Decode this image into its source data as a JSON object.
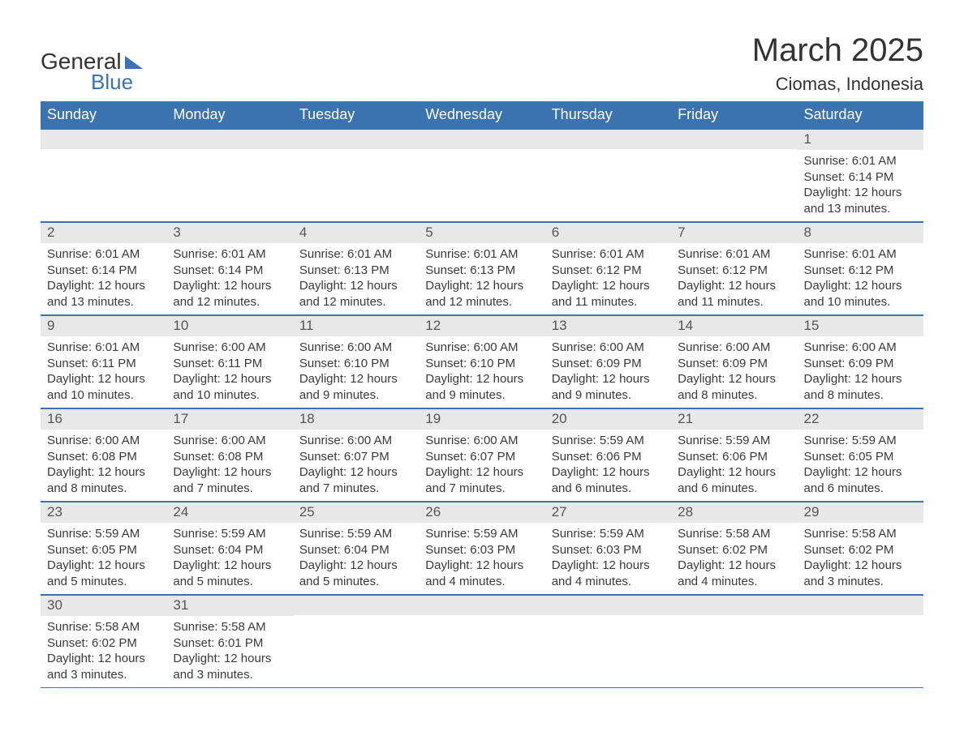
{
  "logo": {
    "text1": "General",
    "text2": "Blue"
  },
  "title": "March 2025",
  "location": "Ciomas, Indonesia",
  "colors": {
    "header_bg": "#3b72b0",
    "header_text": "#ffffff",
    "daynum_bg": "#e8e8e8",
    "daynum_text": "#555555",
    "body_text": "#3a3a3a",
    "border": "#3b72b0",
    "page_bg": "#ffffff"
  },
  "weekdays": [
    "Sunday",
    "Monday",
    "Tuesday",
    "Wednesday",
    "Thursday",
    "Friday",
    "Saturday"
  ],
  "weeks": [
    [
      {
        "day": "",
        "sunrise": "",
        "sunset": "",
        "daylight1": "",
        "daylight2": ""
      },
      {
        "day": "",
        "sunrise": "",
        "sunset": "",
        "daylight1": "",
        "daylight2": ""
      },
      {
        "day": "",
        "sunrise": "",
        "sunset": "",
        "daylight1": "",
        "daylight2": ""
      },
      {
        "day": "",
        "sunrise": "",
        "sunset": "",
        "daylight1": "",
        "daylight2": ""
      },
      {
        "day": "",
        "sunrise": "",
        "sunset": "",
        "daylight1": "",
        "daylight2": ""
      },
      {
        "day": "",
        "sunrise": "",
        "sunset": "",
        "daylight1": "",
        "daylight2": ""
      },
      {
        "day": "1",
        "sunrise": "Sunrise: 6:01 AM",
        "sunset": "Sunset: 6:14 PM",
        "daylight1": "Daylight: 12 hours",
        "daylight2": "and 13 minutes."
      }
    ],
    [
      {
        "day": "2",
        "sunrise": "Sunrise: 6:01 AM",
        "sunset": "Sunset: 6:14 PM",
        "daylight1": "Daylight: 12 hours",
        "daylight2": "and 13 minutes."
      },
      {
        "day": "3",
        "sunrise": "Sunrise: 6:01 AM",
        "sunset": "Sunset: 6:14 PM",
        "daylight1": "Daylight: 12 hours",
        "daylight2": "and 12 minutes."
      },
      {
        "day": "4",
        "sunrise": "Sunrise: 6:01 AM",
        "sunset": "Sunset: 6:13 PM",
        "daylight1": "Daylight: 12 hours",
        "daylight2": "and 12 minutes."
      },
      {
        "day": "5",
        "sunrise": "Sunrise: 6:01 AM",
        "sunset": "Sunset: 6:13 PM",
        "daylight1": "Daylight: 12 hours",
        "daylight2": "and 12 minutes."
      },
      {
        "day": "6",
        "sunrise": "Sunrise: 6:01 AM",
        "sunset": "Sunset: 6:12 PM",
        "daylight1": "Daylight: 12 hours",
        "daylight2": "and 11 minutes."
      },
      {
        "day": "7",
        "sunrise": "Sunrise: 6:01 AM",
        "sunset": "Sunset: 6:12 PM",
        "daylight1": "Daylight: 12 hours",
        "daylight2": "and 11 minutes."
      },
      {
        "day": "8",
        "sunrise": "Sunrise: 6:01 AM",
        "sunset": "Sunset: 6:12 PM",
        "daylight1": "Daylight: 12 hours",
        "daylight2": "and 10 minutes."
      }
    ],
    [
      {
        "day": "9",
        "sunrise": "Sunrise: 6:01 AM",
        "sunset": "Sunset: 6:11 PM",
        "daylight1": "Daylight: 12 hours",
        "daylight2": "and 10 minutes."
      },
      {
        "day": "10",
        "sunrise": "Sunrise: 6:00 AM",
        "sunset": "Sunset: 6:11 PM",
        "daylight1": "Daylight: 12 hours",
        "daylight2": "and 10 minutes."
      },
      {
        "day": "11",
        "sunrise": "Sunrise: 6:00 AM",
        "sunset": "Sunset: 6:10 PM",
        "daylight1": "Daylight: 12 hours",
        "daylight2": "and 9 minutes."
      },
      {
        "day": "12",
        "sunrise": "Sunrise: 6:00 AM",
        "sunset": "Sunset: 6:10 PM",
        "daylight1": "Daylight: 12 hours",
        "daylight2": "and 9 minutes."
      },
      {
        "day": "13",
        "sunrise": "Sunrise: 6:00 AM",
        "sunset": "Sunset: 6:09 PM",
        "daylight1": "Daylight: 12 hours",
        "daylight2": "and 9 minutes."
      },
      {
        "day": "14",
        "sunrise": "Sunrise: 6:00 AM",
        "sunset": "Sunset: 6:09 PM",
        "daylight1": "Daylight: 12 hours",
        "daylight2": "and 8 minutes."
      },
      {
        "day": "15",
        "sunrise": "Sunrise: 6:00 AM",
        "sunset": "Sunset: 6:09 PM",
        "daylight1": "Daylight: 12 hours",
        "daylight2": "and 8 minutes."
      }
    ],
    [
      {
        "day": "16",
        "sunrise": "Sunrise: 6:00 AM",
        "sunset": "Sunset: 6:08 PM",
        "daylight1": "Daylight: 12 hours",
        "daylight2": "and 8 minutes."
      },
      {
        "day": "17",
        "sunrise": "Sunrise: 6:00 AM",
        "sunset": "Sunset: 6:08 PM",
        "daylight1": "Daylight: 12 hours",
        "daylight2": "and 7 minutes."
      },
      {
        "day": "18",
        "sunrise": "Sunrise: 6:00 AM",
        "sunset": "Sunset: 6:07 PM",
        "daylight1": "Daylight: 12 hours",
        "daylight2": "and 7 minutes."
      },
      {
        "day": "19",
        "sunrise": "Sunrise: 6:00 AM",
        "sunset": "Sunset: 6:07 PM",
        "daylight1": "Daylight: 12 hours",
        "daylight2": "and 7 minutes."
      },
      {
        "day": "20",
        "sunrise": "Sunrise: 5:59 AM",
        "sunset": "Sunset: 6:06 PM",
        "daylight1": "Daylight: 12 hours",
        "daylight2": "and 6 minutes."
      },
      {
        "day": "21",
        "sunrise": "Sunrise: 5:59 AM",
        "sunset": "Sunset: 6:06 PM",
        "daylight1": "Daylight: 12 hours",
        "daylight2": "and 6 minutes."
      },
      {
        "day": "22",
        "sunrise": "Sunrise: 5:59 AM",
        "sunset": "Sunset: 6:05 PM",
        "daylight1": "Daylight: 12 hours",
        "daylight2": "and 6 minutes."
      }
    ],
    [
      {
        "day": "23",
        "sunrise": "Sunrise: 5:59 AM",
        "sunset": "Sunset: 6:05 PM",
        "daylight1": "Daylight: 12 hours",
        "daylight2": "and 5 minutes."
      },
      {
        "day": "24",
        "sunrise": "Sunrise: 5:59 AM",
        "sunset": "Sunset: 6:04 PM",
        "daylight1": "Daylight: 12 hours",
        "daylight2": "and 5 minutes."
      },
      {
        "day": "25",
        "sunrise": "Sunrise: 5:59 AM",
        "sunset": "Sunset: 6:04 PM",
        "daylight1": "Daylight: 12 hours",
        "daylight2": "and 5 minutes."
      },
      {
        "day": "26",
        "sunrise": "Sunrise: 5:59 AM",
        "sunset": "Sunset: 6:03 PM",
        "daylight1": "Daylight: 12 hours",
        "daylight2": "and 4 minutes."
      },
      {
        "day": "27",
        "sunrise": "Sunrise: 5:59 AM",
        "sunset": "Sunset: 6:03 PM",
        "daylight1": "Daylight: 12 hours",
        "daylight2": "and 4 minutes."
      },
      {
        "day": "28",
        "sunrise": "Sunrise: 5:58 AM",
        "sunset": "Sunset: 6:02 PM",
        "daylight1": "Daylight: 12 hours",
        "daylight2": "and 4 minutes."
      },
      {
        "day": "29",
        "sunrise": "Sunrise: 5:58 AM",
        "sunset": "Sunset: 6:02 PM",
        "daylight1": "Daylight: 12 hours",
        "daylight2": "and 3 minutes."
      }
    ],
    [
      {
        "day": "30",
        "sunrise": "Sunrise: 5:58 AM",
        "sunset": "Sunset: 6:02 PM",
        "daylight1": "Daylight: 12 hours",
        "daylight2": "and 3 minutes."
      },
      {
        "day": "31",
        "sunrise": "Sunrise: 5:58 AM",
        "sunset": "Sunset: 6:01 PM",
        "daylight1": "Daylight: 12 hours",
        "daylight2": "and 3 minutes."
      },
      {
        "day": "",
        "sunrise": "",
        "sunset": "",
        "daylight1": "",
        "daylight2": ""
      },
      {
        "day": "",
        "sunrise": "",
        "sunset": "",
        "daylight1": "",
        "daylight2": ""
      },
      {
        "day": "",
        "sunrise": "",
        "sunset": "",
        "daylight1": "",
        "daylight2": ""
      },
      {
        "day": "",
        "sunrise": "",
        "sunset": "",
        "daylight1": "",
        "daylight2": ""
      },
      {
        "day": "",
        "sunrise": "",
        "sunset": "",
        "daylight1": "",
        "daylight2": ""
      }
    ]
  ]
}
